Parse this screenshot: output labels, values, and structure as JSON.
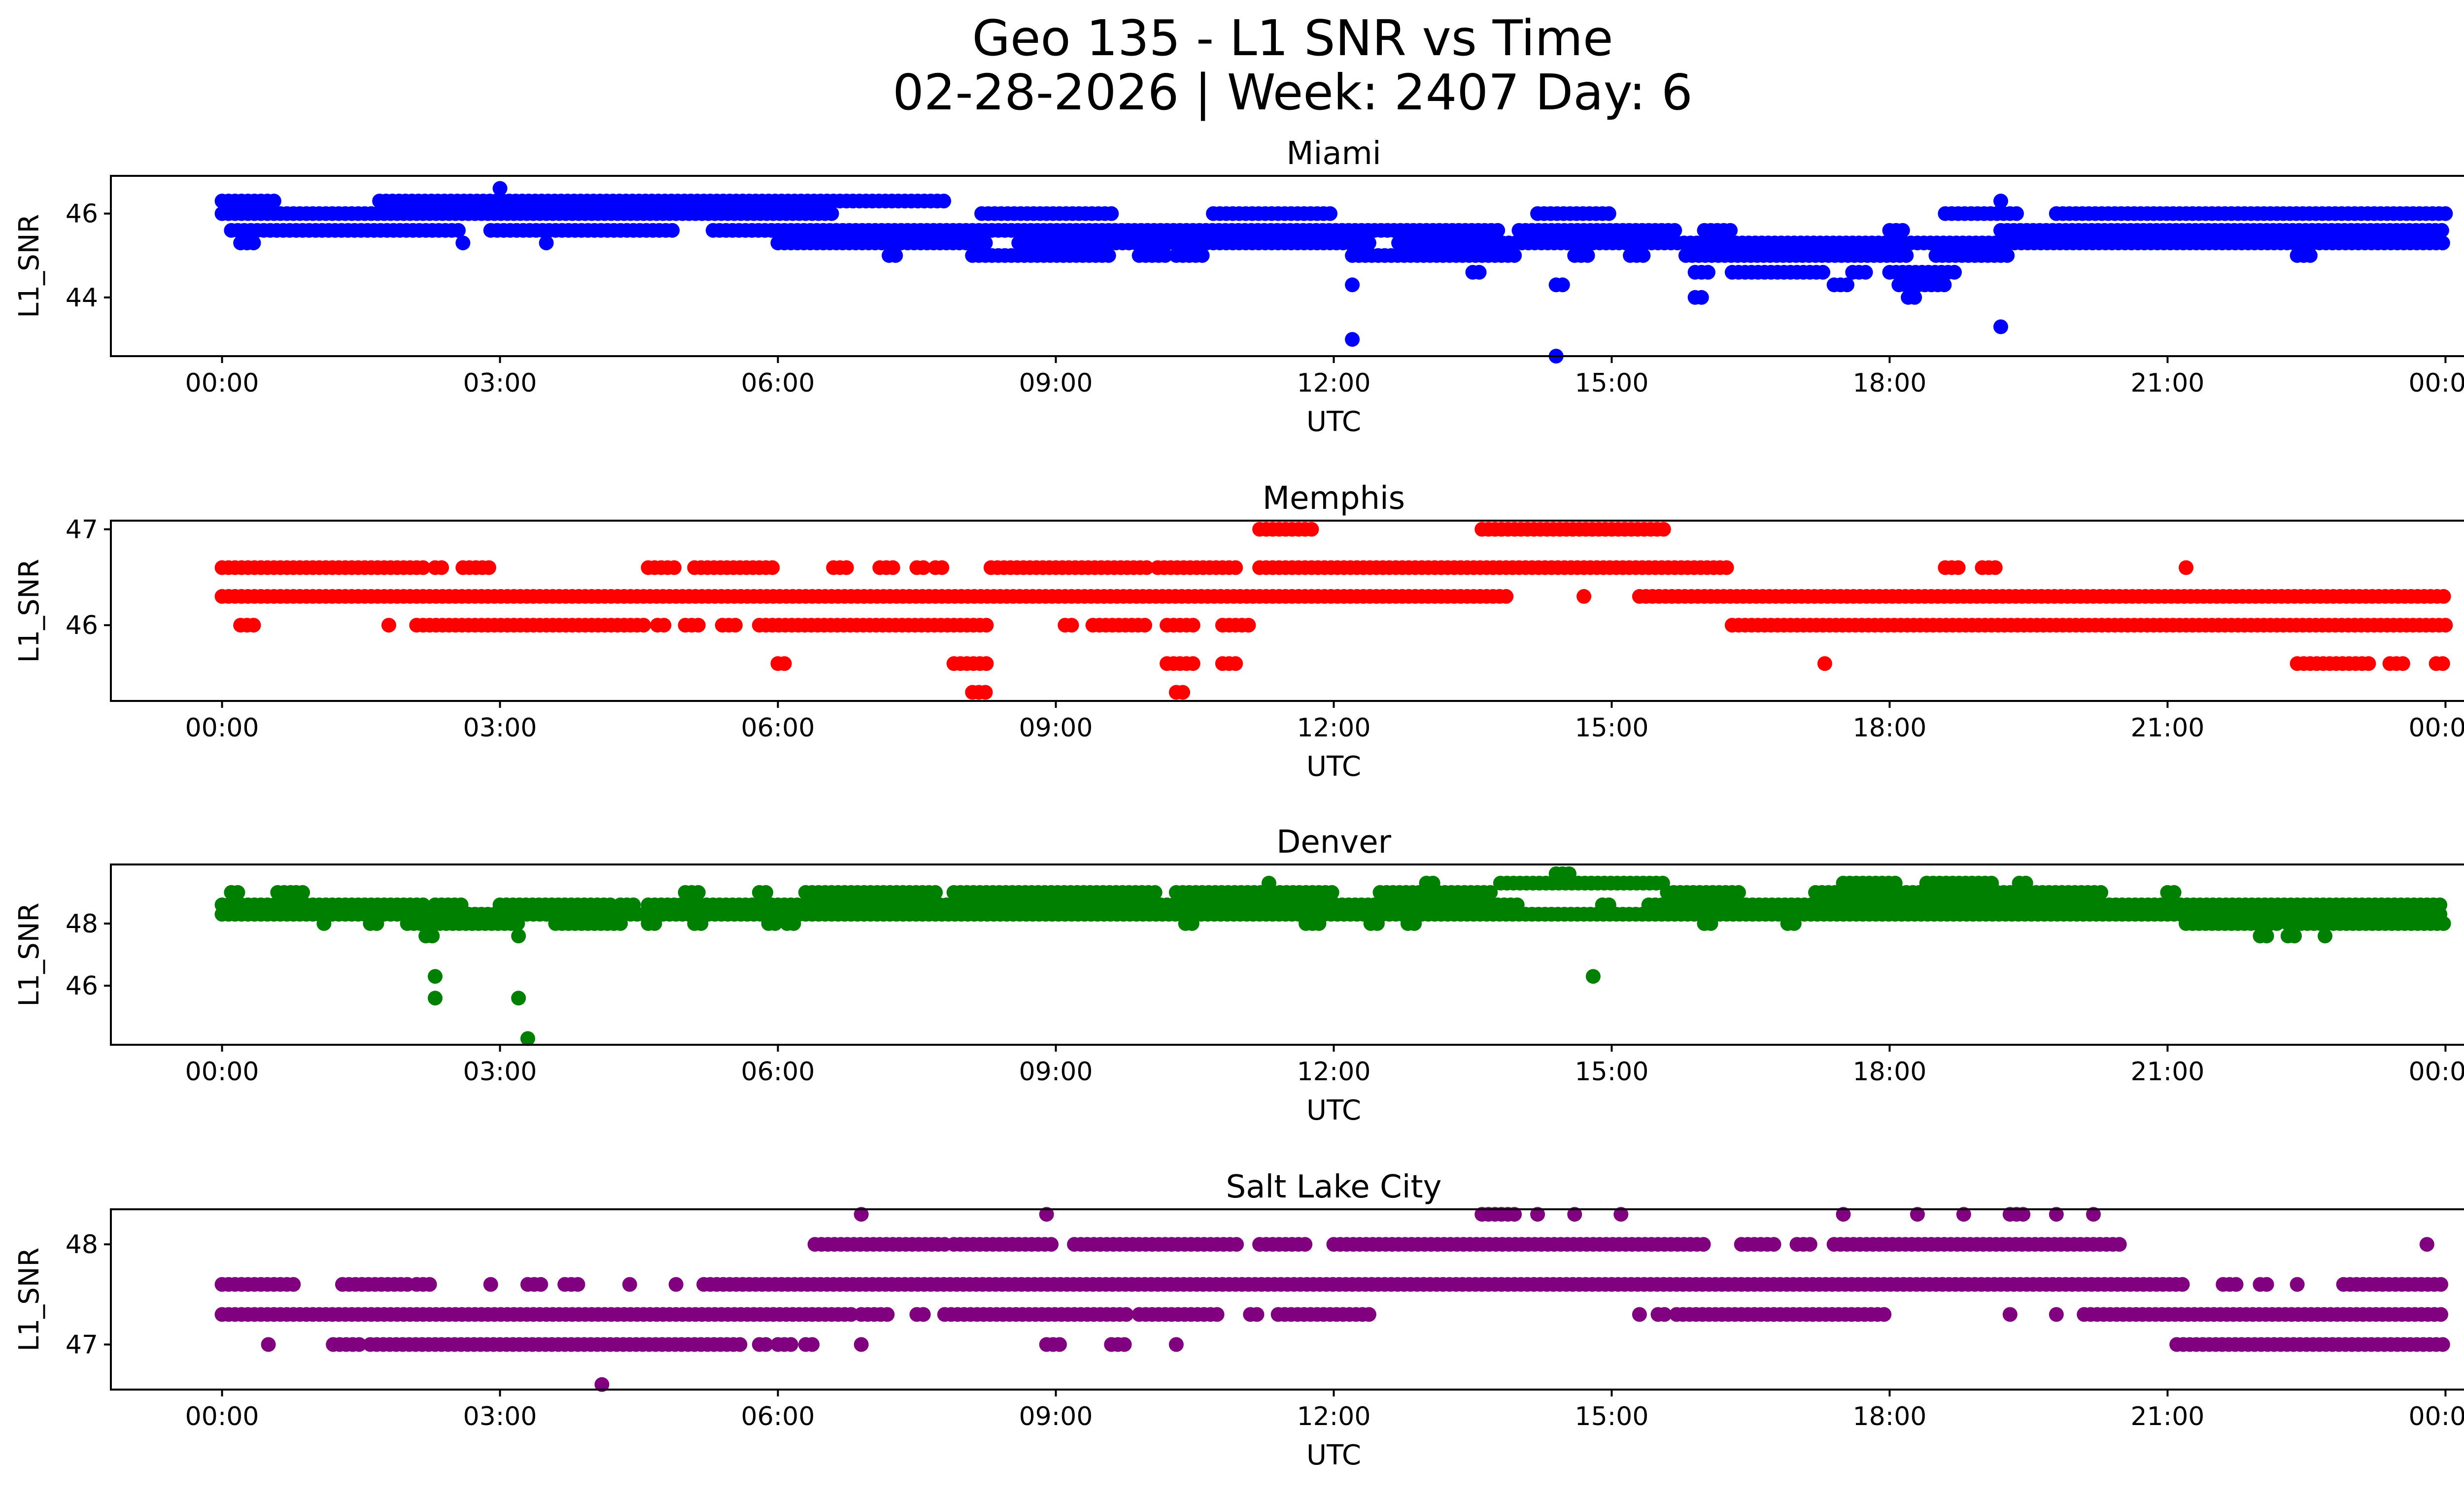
{
  "figure": {
    "title_line1": "Geo 135 - L1 SNR vs Time",
    "title_line2": "02-28-2026 | Week: 2407 Day: 6"
  },
  "chart_data": [
    {
      "type": "scatter",
      "title": "Miami",
      "xlabel": "UTC",
      "ylabel": "L1_SNR",
      "color": "#0000ff",
      "xlim_hours": [
        -1.2,
        25.2
      ],
      "ylim": [
        42.6,
        46.9
      ],
      "x_ticks": [
        "00:00",
        "03:00",
        "06:00",
        "09:00",
        "12:00",
        "15:00",
        "18:00",
        "21:00",
        "00:00"
      ],
      "x_tick_hours": [
        0,
        3,
        6,
        9,
        12,
        15,
        18,
        21,
        24
      ],
      "y_ticks": [
        44,
        46
      ],
      "levels": [
        {
          "y": 46.3,
          "ranges": [
            [
              0,
              0.6
            ],
            [
              1.7,
              7.8
            ]
          ]
        },
        {
          "y": 46.0,
          "ranges": [
            [
              0,
              6.6
            ],
            [
              8.2,
              9.6
            ],
            [
              10.7,
              12.0
            ],
            [
              14.2,
              15.0
            ],
            [
              18.6,
              19.4
            ],
            [
              19.8,
              24
            ]
          ]
        },
        {
          "y": 45.6,
          "ranges": [
            [
              0.1,
              2.6
            ],
            [
              2.9,
              4.9
            ],
            [
              5.3,
              13.8
            ],
            [
              14.0,
              15.7
            ],
            [
              16.0,
              16.3
            ],
            [
              18.0,
              18.2
            ],
            [
              19.2,
              24
            ]
          ]
        },
        {
          "y": 45.3,
          "ranges": [
            [
              0.2,
              0.4
            ],
            [
              6.0,
              8.3
            ],
            [
              8.6,
              12.4
            ],
            [
              12.7,
              24
            ]
          ]
        },
        {
          "y": 45.0,
          "ranges": [
            [
              7.2,
              7.3
            ],
            [
              8.1,
              9.6
            ],
            [
              9.9,
              10.2
            ],
            [
              10.3,
              10.6
            ],
            [
              12.2,
              14.0
            ],
            [
              14.6,
              14.8
            ],
            [
              15.2,
              15.4
            ],
            [
              15.8,
              18.2
            ],
            [
              18.5,
              19.3
            ],
            [
              22.4,
              22.6
            ]
          ]
        },
        {
          "y": 44.6,
          "ranges": [
            [
              13.5,
              13.6
            ],
            [
              15.9,
              16.1
            ],
            [
              16.3,
              17.3
            ],
            [
              17.6,
              17.8
            ],
            [
              18.0,
              18.7
            ]
          ]
        },
        {
          "y": 44.3,
          "ranges": [
            [
              12.2,
              12.25
            ],
            [
              14.4,
              14.5
            ],
            [
              17.4,
              17.6
            ],
            [
              18.1,
              18.6
            ]
          ]
        },
        {
          "y": 44.0,
          "ranges": [
            [
              15.9,
              16.0
            ],
            [
              18.2,
              18.3
            ]
          ]
        }
      ],
      "outliers": [
        [
          3.0,
          46.6
        ],
        [
          2.6,
          45.3
        ],
        [
          3.5,
          45.3
        ],
        [
          19.2,
          46.3
        ],
        [
          12.2,
          43.0
        ],
        [
          19.2,
          43.3
        ],
        [
          14.4,
          42.6
        ]
      ]
    },
    {
      "type": "scatter",
      "title": "Memphis",
      "xlabel": "UTC",
      "ylabel": "L1_SNR",
      "color": "#ff0000",
      "xlim_hours": [
        -1.2,
        25.2
      ],
      "ylim": [
        45.21,
        47.09
      ],
      "x_ticks": [
        "00:00",
        "03:00",
        "06:00",
        "09:00",
        "12:00",
        "15:00",
        "18:00",
        "21:00",
        "00:00"
      ],
      "x_tick_hours": [
        0,
        3,
        6,
        9,
        12,
        15,
        18,
        21,
        24
      ],
      "y_ticks": [
        46,
        47
      ],
      "levels": [
        {
          "y": 47.0,
          "ranges": [
            [
              11.2,
              11.8
            ],
            [
              13.6,
              15.6
            ]
          ]
        },
        {
          "y": 46.6,
          "ranges": [
            [
              0,
              2.2
            ],
            [
              2.3,
              2.4
            ],
            [
              2.6,
              2.9
            ],
            [
              4.6,
              4.9
            ],
            [
              5.1,
              6.0
            ],
            [
              6.6,
              6.8
            ],
            [
              7.1,
              7.3
            ],
            [
              7.5,
              7.6
            ],
            [
              7.7,
              7.8
            ],
            [
              8.3,
              10.0
            ],
            [
              10.1,
              11.0
            ],
            [
              11.2,
              16.3
            ],
            [
              18.6,
              18.8
            ],
            [
              19.0,
              19.2
            ],
            [
              21.2,
              21.25
            ]
          ]
        },
        {
          "y": 46.3,
          "ranges": [
            [
              0,
              13.9
            ],
            [
              15.3,
              24
            ]
          ]
        },
        {
          "y": 46.0,
          "ranges": [
            [
              0.2,
              0.4
            ],
            [
              1.8,
              1.85
            ],
            [
              2.1,
              4.6
            ],
            [
              4.7,
              4.8
            ],
            [
              5.0,
              5.2
            ],
            [
              5.4,
              5.6
            ],
            [
              5.8,
              8.3
            ],
            [
              9.1,
              9.2
            ],
            [
              9.4,
              10.0
            ],
            [
              10.2,
              10.5
            ],
            [
              10.8,
              11.1
            ],
            [
              16.3,
              24
            ]
          ]
        },
        {
          "y": 45.6,
          "ranges": [
            [
              6.0,
              6.1
            ],
            [
              7.9,
              8.3
            ],
            [
              10.2,
              10.5
            ],
            [
              10.8,
              11.0
            ],
            [
              17.3,
              17.35
            ],
            [
              22.4,
              23.2
            ],
            [
              23.4,
              23.6
            ],
            [
              23.9,
              24.0
            ]
          ]
        },
        {
          "y": 45.3,
          "ranges": [
            [
              8.1,
              8.3
            ],
            [
              10.3,
              10.4
            ]
          ]
        }
      ],
      "outliers": [
        [
          14.7,
          46.3
        ]
      ]
    },
    {
      "type": "scatter",
      "title": "Denver",
      "xlabel": "UTC",
      "ylabel": "L1_SNR",
      "color": "#008000",
      "xlim_hours": [
        -1.2,
        25.2
      ],
      "ylim": [
        44.1,
        49.9
      ],
      "x_ticks": [
        "00:00",
        "03:00",
        "06:00",
        "09:00",
        "12:00",
        "15:00",
        "18:00",
        "21:00",
        "00:00"
      ],
      "x_tick_hours": [
        0,
        3,
        6,
        9,
        12,
        15,
        18,
        21,
        24
      ],
      "y_ticks": [
        46,
        48
      ],
      "levels": [
        {
          "y": 49.6,
          "ranges": [
            [
              14.4,
              14.6
            ]
          ]
        },
        {
          "y": 49.3,
          "ranges": [
            [
              11.3,
              11.35
            ],
            [
              13.0,
              13.1
            ],
            [
              13.8,
              15.6
            ],
            [
              17.5,
              18.1
            ],
            [
              18.4,
              19.1
            ],
            [
              19.4,
              19.5
            ]
          ]
        },
        {
          "y": 49.0,
          "ranges": [
            [
              0.1,
              0.2
            ],
            [
              0.6,
              0.8
            ],
            [
              0.8,
              0.9
            ],
            [
              5.0,
              5.2
            ],
            [
              5.8,
              5.9
            ],
            [
              6.3,
              7.7
            ],
            [
              7.9,
              10.1
            ],
            [
              10.3,
              12.0
            ],
            [
              12.5,
              13.7
            ],
            [
              15.6,
              16.4
            ],
            [
              17.2,
              20.3
            ],
            [
              21.0,
              21.1
            ]
          ]
        },
        {
          "y": 48.6,
          "ranges": [
            [
              0,
              2.2
            ],
            [
              2.3,
              2.6
            ],
            [
              3.0,
              4.2
            ],
            [
              4.3,
              4.5
            ],
            [
              4.6,
              14.0
            ],
            [
              14.9,
              15.0
            ],
            [
              15.4,
              24
            ]
          ]
        },
        {
          "y": 48.3,
          "ranges": [
            [
              0,
              24
            ]
          ]
        },
        {
          "y": 48.0,
          "ranges": [
            [
              1.1,
              1.15
            ],
            [
              1.6,
              1.7
            ],
            [
              2.0,
              3.2
            ],
            [
              3.6,
              4.3
            ],
            [
              4.6,
              4.7
            ],
            [
              5.1,
              5.2
            ],
            [
              5.9,
              6.0
            ],
            [
              6.1,
              6.2
            ],
            [
              10.4,
              10.5
            ],
            [
              11.7,
              11.9
            ],
            [
              12.4,
              12.5
            ],
            [
              12.8,
              12.9
            ],
            [
              16.0,
              16.1
            ],
            [
              16.9,
              17.0
            ],
            [
              21.2,
              22.2
            ],
            [
              22.3,
              24
            ]
          ]
        },
        {
          "y": 47.6,
          "ranges": [
            [
              2.2,
              2.3
            ],
            [
              3.2,
              3.25
            ],
            [
              22.0,
              22.1
            ],
            [
              22.3,
              22.4
            ],
            [
              22.7,
              22.75
            ]
          ]
        }
      ],
      "outliers": [
        [
          2.3,
          46.3
        ],
        [
          2.3,
          45.6
        ],
        [
          3.2,
          45.6
        ],
        [
          3.3,
          44.3
        ],
        [
          14.8,
          46.3
        ]
      ]
    },
    {
      "type": "scatter",
      "title": "Salt Lake City",
      "xlabel": "UTC",
      "ylabel": "L1_SNR",
      "color": "#800080",
      "xlim_hours": [
        -1.2,
        25.2
      ],
      "ylim": [
        46.55,
        48.35
      ],
      "x_ticks": [
        "00:00",
        "03:00",
        "06:00",
        "09:00",
        "12:00",
        "15:00",
        "18:00",
        "21:00",
        "00:00"
      ],
      "x_tick_hours": [
        0,
        3,
        6,
        9,
        12,
        15,
        18,
        21,
        24
      ],
      "y_ticks": [
        47,
        48
      ],
      "levels": [
        {
          "y": 48.3,
          "ranges": [
            [
              6.9,
              6.95
            ],
            [
              8.9,
              8.95
            ],
            [
              13.6,
              14.0
            ],
            [
              14.2,
              14.25
            ],
            [
              14.6,
              14.65
            ],
            [
              15.1,
              15.15
            ],
            [
              17.5,
              17.55
            ],
            [
              18.3,
              18.35
            ],
            [
              18.8,
              18.85
            ],
            [
              19.3,
              19.5
            ],
            [
              19.8,
              19.85
            ],
            [
              20.2,
              20.25
            ]
          ]
        },
        {
          "y": 48.0,
          "ranges": [
            [
              6.4,
              7.8
            ],
            [
              7.9,
              9.0
            ],
            [
              9.2,
              11.0
            ],
            [
              11.2,
              11.7
            ],
            [
              12.0,
              16.0
            ],
            [
              16.4,
              16.8
            ],
            [
              17.0,
              17.2
            ],
            [
              17.4,
              20.5
            ]
          ]
        },
        {
          "y": 47.6,
          "ranges": [
            [
              0,
              0.8
            ],
            [
              1.3,
              2.0
            ],
            [
              2.1,
              2.3
            ],
            [
              2.9,
              2.95
            ],
            [
              3.3,
              3.5
            ],
            [
              3.7,
              3.9
            ],
            [
              4.4,
              4.45
            ],
            [
              4.9,
              4.95
            ],
            [
              5.2,
              21.2
            ],
            [
              21.6,
              21.8
            ],
            [
              22.0,
              22.1
            ],
            [
              22.4,
              22.45
            ],
            [
              22.9,
              24
            ]
          ]
        },
        {
          "y": 47.3,
          "ranges": [
            [
              0,
              6.8
            ],
            [
              6.9,
              7.2
            ],
            [
              7.5,
              7.6
            ],
            [
              7.8,
              9.8
            ],
            [
              9.9,
              10.8
            ],
            [
              11.1,
              11.2
            ],
            [
              11.4,
              12.4
            ],
            [
              15.3,
              15.35
            ],
            [
              15.5,
              15.6
            ],
            [
              15.7,
              18.0
            ],
            [
              19.3,
              19.35
            ],
            [
              19.8,
              19.85
            ],
            [
              20.1,
              24
            ]
          ]
        },
        {
          "y": 47.0,
          "ranges": [
            [
              0.5,
              0.55
            ],
            [
              1.2,
              1.5
            ],
            [
              1.6,
              5.6
            ],
            [
              5.8,
              5.9
            ],
            [
              6.0,
              6.2
            ],
            [
              6.3,
              6.4
            ],
            [
              6.9,
              6.95
            ],
            [
              8.9,
              9.1
            ],
            [
              9.6,
              9.8
            ],
            [
              10.3,
              10.35
            ],
            [
              21.1,
              24
            ]
          ]
        }
      ],
      "outliers": [
        [
          4.1,
          46.6
        ],
        [
          23.8,
          48.0
        ]
      ]
    }
  ]
}
